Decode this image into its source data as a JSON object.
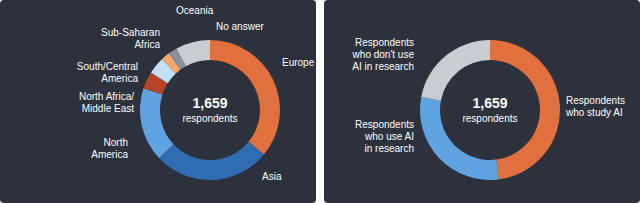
{
  "chart_data": [
    {
      "type": "donut",
      "categories": [
        "Europe",
        "Asia",
        "North\nAmerica",
        "North Africa/\nMiddle East",
        "South/Central\nAmerica",
        "Sub-Saharan\nAfrica",
        "Oceania",
        "No answer"
      ],
      "values": [
        36,
        27,
        17,
        4,
        4,
        2,
        2,
        8
      ],
      "colors": [
        "#e0703e",
        "#2f6db3",
        "#5fa3e0",
        "#b5442a",
        "#bfe0f7",
        "#f4a96b",
        "#8a8f99",
        "#c9ccd1"
      ],
      "center_text": [
        "1,659",
        "respondents"
      ]
    },
    {
      "type": "donut",
      "categories": [
        "Respondents\nwho study AI",
        "Respondents\nwho use AI\nin research",
        "Respondents\nwho don't use\nAI in research"
      ],
      "values": [
        48,
        30,
        22
      ],
      "colors": [
        "#e0703e",
        "#5fa3e0",
        "#c9ccd1"
      ],
      "center_text": [
        "1,659",
        "respondents"
      ]
    }
  ]
}
